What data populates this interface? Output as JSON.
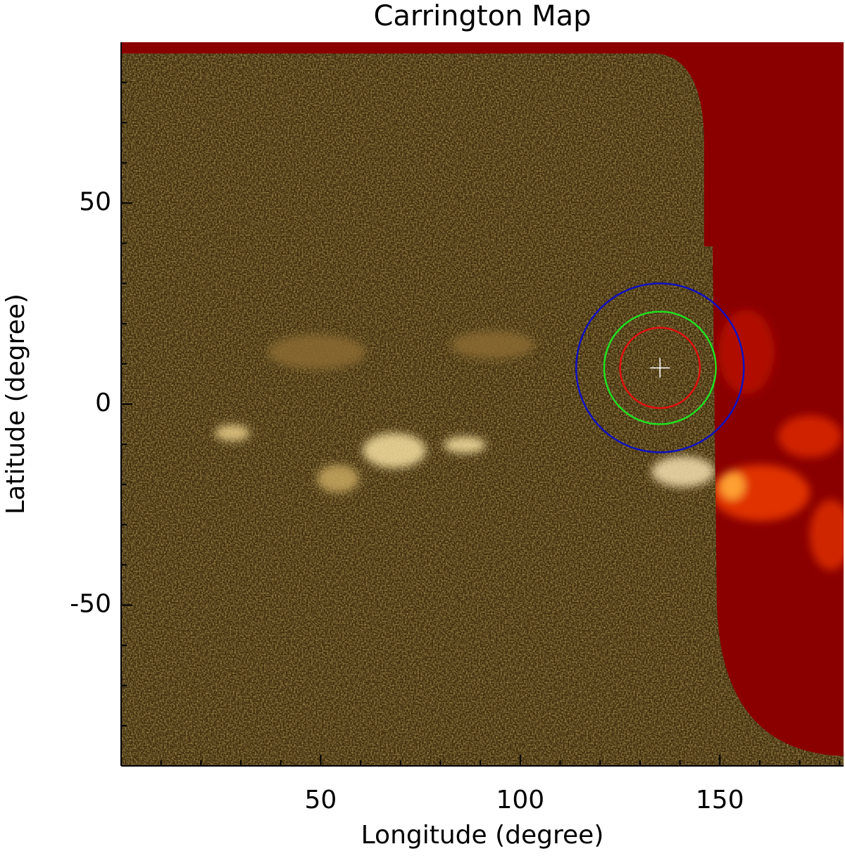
{
  "chart_data": {
    "type": "image-map",
    "title": "Carrington Map",
    "xlabel": "Longitude (degree)",
    "ylabel": "Latitude (degree)",
    "xlim": [
      0,
      181
    ],
    "ylim": [
      -90,
      90
    ],
    "xticks": [
      50,
      100,
      150
    ],
    "yticks": [
      -50,
      0,
      50
    ],
    "xminorticks": [
      10,
      20,
      30,
      40,
      60,
      70,
      80,
      90,
      110,
      120,
      130,
      140,
      160,
      170,
      180
    ],
    "yminorticks": [
      -80,
      -70,
      -60,
      -40,
      -30,
      -20,
      -10,
      10,
      20,
      30,
      40,
      60,
      70,
      80
    ],
    "circles": [
      {
        "x": 135,
        "y": 9,
        "radius": 21,
        "color": "#1010c0"
      },
      {
        "x": 135,
        "y": 9,
        "radius": 14,
        "color": "#20e020"
      },
      {
        "x": 135,
        "y": 9,
        "radius": 10,
        "color": "#e01010"
      }
    ],
    "marker": {
      "x": 135,
      "y": 9,
      "color": "#ffffff"
    }
  }
}
